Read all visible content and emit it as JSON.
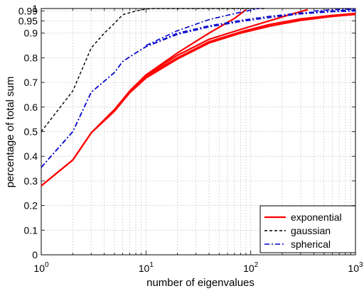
{
  "chart_data": {
    "type": "line",
    "title": "",
    "xlabel": "number of eigenvalues",
    "ylabel": "percentage of total sum",
    "xscale": "log",
    "xlim": [
      1,
      1000
    ],
    "ylim": [
      0,
      1
    ],
    "x_tick_labels": [
      {
        "base": "10",
        "exp": "0"
      },
      {
        "base": "10",
        "exp": "1"
      },
      {
        "base": "10",
        "exp": "2"
      },
      {
        "base": "10",
        "exp": "3"
      }
    ],
    "y_tick_labels": [
      "0",
      "0.1",
      "0.2",
      "0.3",
      "0.4",
      "0.5",
      "0.6",
      "0.7",
      "0.8",
      "0.9",
      "0.95",
      "0.99",
      "1"
    ],
    "y_tick_values": [
      0,
      0.1,
      0.2,
      0.3,
      0.4,
      0.5,
      0.6,
      0.7,
      0.8,
      0.9,
      0.95,
      0.99,
      1
    ],
    "grid": true,
    "legend_position": "bottom-right",
    "series": [
      {
        "name": "exponential",
        "color": "#ff0000",
        "style": "solid",
        "lines": [
          {
            "x": [
              1,
              2,
              3,
              5,
              7,
              10,
              20,
              40,
              80,
              150,
              300,
              600,
              1000
            ],
            "y": [
              0.28,
              0.385,
              0.495,
              0.59,
              0.665,
              0.725,
              0.8,
              0.865,
              0.905,
              0.935,
              0.958,
              0.972,
              0.98
            ]
          },
          {
            "x": [
              1,
              2,
              3,
              5,
              7,
              10,
              20,
              40,
              80,
              150,
              300,
              600,
              1000
            ],
            "y": [
              0.28,
              0.385,
              0.495,
              0.583,
              0.658,
              0.718,
              0.795,
              0.86,
              0.9,
              0.928,
              0.952,
              0.968,
              0.976
            ]
          },
          {
            "x": [
              7,
              10,
              20,
              40,
              80,
              150,
              250,
              350
            ],
            "y": [
              0.665,
              0.73,
              0.81,
              0.875,
              0.915,
              0.95,
              0.978,
              0.995
            ]
          },
          {
            "x": [
              7,
              10,
              20,
              40,
              70,
              90
            ],
            "y": [
              0.665,
              0.73,
              0.82,
              0.9,
              0.96,
              0.995
            ]
          }
        ]
      },
      {
        "name": "gaussian",
        "color": "#000000",
        "style": "dashed",
        "lines": [
          {
            "x": [
              1,
              2,
              3,
              4,
              5,
              6,
              8,
              10,
              12,
              20,
              50,
              100,
              140
            ],
            "y": [
              0.5,
              0.665,
              0.84,
              0.9,
              0.94,
              0.975,
              0.99,
              0.998,
              1.0,
              1.0,
              1.0,
              1.0,
              1.0
            ]
          }
        ]
      },
      {
        "name": "spherical",
        "color": "#0000cc",
        "style": "dashdot",
        "lines": [
          {
            "x": [
              1,
              2,
              3,
              5,
              6,
              8,
              10,
              20,
              40,
              80,
              150,
              300,
              600,
              1000
            ],
            "y": [
              0.355,
              0.5,
              0.66,
              0.74,
              0.785,
              0.82,
              0.845,
              0.9,
              0.93,
              0.952,
              0.968,
              0.982,
              0.99,
              0.994
            ]
          },
          {
            "x": [
              1,
              2,
              3,
              5,
              6,
              8,
              10,
              20,
              40,
              80,
              150,
              300,
              600,
              1000
            ],
            "y": [
              0.355,
              0.5,
              0.66,
              0.74,
              0.785,
              0.82,
              0.845,
              0.895,
              0.925,
              0.947,
              0.963,
              0.978,
              0.987,
              0.99
            ]
          },
          {
            "x": [
              10,
              20,
              40,
              80,
              120
            ],
            "y": [
              0.85,
              0.91,
              0.955,
              0.985,
              1.0
            ]
          },
          {
            "x": [
              400,
              600,
              1000
            ],
            "y": [
              0.99,
              0.995,
              0.998
            ]
          }
        ]
      }
    ]
  }
}
